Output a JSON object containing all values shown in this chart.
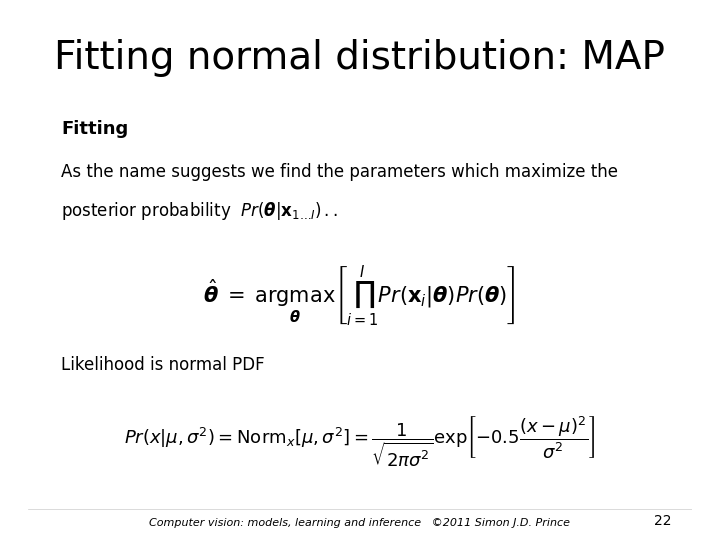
{
  "title": "Fitting normal distribution: MAP",
  "title_fontsize": 28,
  "bg_color": "#ffffff",
  "text_color": "#000000",
  "bold_label": "Fitting",
  "body_text_line1": "As the name suggests we find the parameters which maximize the",
  "body_text_line2": "posterior probability",
  "likelihood_label": "Likelihood is normal PDF",
  "footer_text": "Computer vision: models, learning and inference   ©2011 Simon J.D. Prince",
  "page_number": "22",
  "footer_fontsize": 8
}
